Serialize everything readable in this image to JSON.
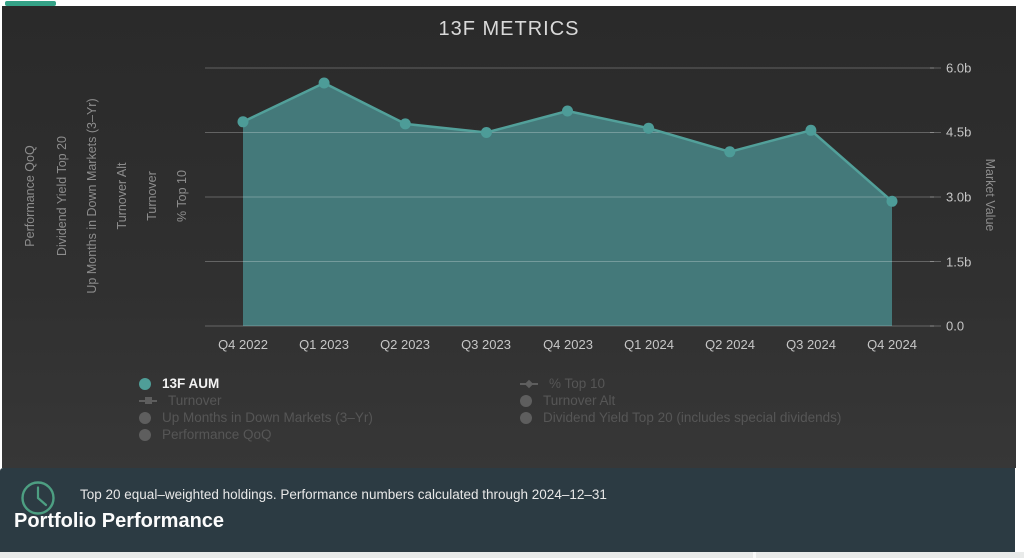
{
  "chart": {
    "title": "13F METRICS",
    "hidden_axis_titles": [
      "Performance QoQ",
      "Dividend Yield Top 20",
      "Up Months in Down Markets (3–Yr)",
      "Turnover Alt",
      "Turnover",
      "% Top 10"
    ],
    "y_axis": {
      "title": "Market Value",
      "tick_labels": [
        "6.0b",
        "4.5b",
        "3.0b",
        "1.5b",
        "0.0"
      ]
    },
    "x_tick_labels": [
      "Q4 2022",
      "Q1 2023",
      "Q2 2023",
      "Q3 2023",
      "Q4 2023",
      "Q1 2024",
      "Q2 2024",
      "Q3 2024",
      "Q4 2024"
    ],
    "legend": {
      "columns": [
        {
          "items": [
            {
              "label": "13F AUM",
              "marker": "circle",
              "active": true
            },
            {
              "label": "Turnover",
              "marker": "line-square",
              "active": false
            },
            {
              "label": "Up Months in Down Markets (3–Yr)",
              "marker": "circle",
              "active": false
            },
            {
              "label": "Performance QoQ",
              "marker": "circle",
              "active": false
            }
          ]
        },
        {
          "items": [
            {
              "label": "% Top 10",
              "marker": "line-diamond",
              "active": false
            },
            {
              "label": "Turnover Alt",
              "marker": "circle",
              "active": false
            },
            {
              "label": "Dividend Yield Top 20 (includes special dividends)",
              "marker": "circle",
              "active": false
            }
          ]
        }
      ]
    }
  },
  "chart_data": {
    "type": "area",
    "title": "13F METRICS",
    "categories": [
      "Q4 2022",
      "Q1 2023",
      "Q2 2023",
      "Q3 2023",
      "Q4 2023",
      "Q1 2024",
      "Q2 2024",
      "Q3 2024",
      "Q4 2024"
    ],
    "series": [
      {
        "name": "13F AUM",
        "unit": "billions",
        "values": [
          4.75,
          5.65,
          4.7,
          4.5,
          5.0,
          4.6,
          4.05,
          4.55,
          2.9
        ]
      }
    ],
    "xlabel": "",
    "ylabel": "Market Value",
    "ylim": [
      0,
      6.9
    ],
    "yticks": [
      0,
      1.5,
      3.0,
      4.5,
      6.0
    ],
    "ytick_format": "b",
    "grid": true,
    "legend_position": "bottom",
    "hidden_series": [
      "Turnover",
      "Up Months in Down Markets (3–Yr)",
      "Performance QoQ",
      "% Top 10",
      "Turnover Alt",
      "Dividend Yield Top 20 (includes special dividends)"
    ]
  },
  "footer": {
    "icon": "clock-icon",
    "note": "Top 20 equal–weighted holdings. Performance numbers calculated through 2024–12–31",
    "heading": "Portfolio Performance"
  },
  "colors": {
    "accent_teal": "#35a287",
    "panel_bg": "#2f2f2f",
    "footer_bg": "#2c3b43",
    "area_fill": "#44797a",
    "line": "#52a09a",
    "marker": "#4d9c98",
    "grid": "rgba(255,255,255,0.26)",
    "clock": "#4d9f82",
    "disabled_text": "#565656"
  }
}
